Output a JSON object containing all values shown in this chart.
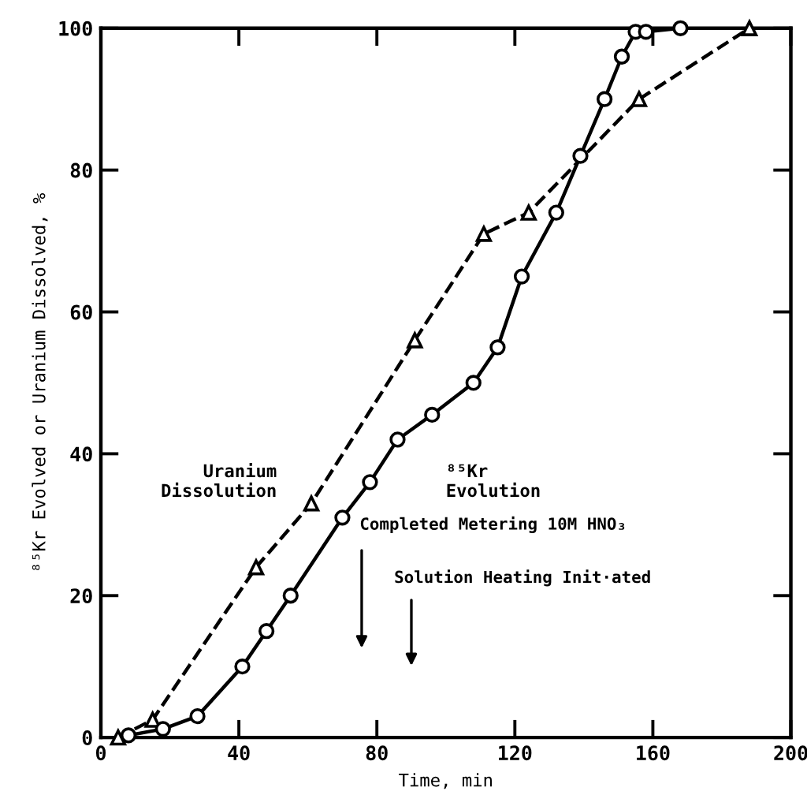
{
  "chart_data": {
    "type": "line",
    "xlabel": "Time, min",
    "ylabel": "⁸⁵Kr Evolved or Uranium Dissolved, %",
    "xlim": [
      0,
      200
    ],
    "ylim": [
      0,
      100
    ],
    "xticks": [
      0,
      40,
      80,
      120,
      160,
      200
    ],
    "yticks": [
      0,
      20,
      40,
      60,
      80,
      100
    ],
    "grid": false,
    "legend": false,
    "series": [
      {
        "name": "Uranium Dissolution",
        "color": "#000000",
        "marker": "triangle",
        "line_style": "dashed",
        "x": [
          5,
          15,
          45,
          61,
          91,
          111,
          124,
          156,
          188
        ],
        "values": [
          0,
          2.5,
          24,
          33,
          56,
          71,
          74,
          90,
          100
        ]
      },
      {
        "name": "⁸⁵Kr Evolution",
        "color": "#000000",
        "marker": "circle",
        "line_style": "solid",
        "x": [
          8,
          18,
          28,
          41,
          48,
          55,
          70,
          78,
          86,
          96,
          108,
          115,
          122,
          132,
          139,
          146,
          151,
          155,
          158,
          168
        ],
        "values": [
          0.3,
          1.2,
          3,
          10,
          15,
          20,
          31,
          36,
          42,
          45.5,
          50,
          55,
          65,
          74,
          82,
          90,
          96,
          99.5,
          99.5,
          100
        ]
      }
    ],
    "annotations": [
      "Completed Metering 10M HNO₃",
      "Solution Heating Init·ated"
    ]
  }
}
